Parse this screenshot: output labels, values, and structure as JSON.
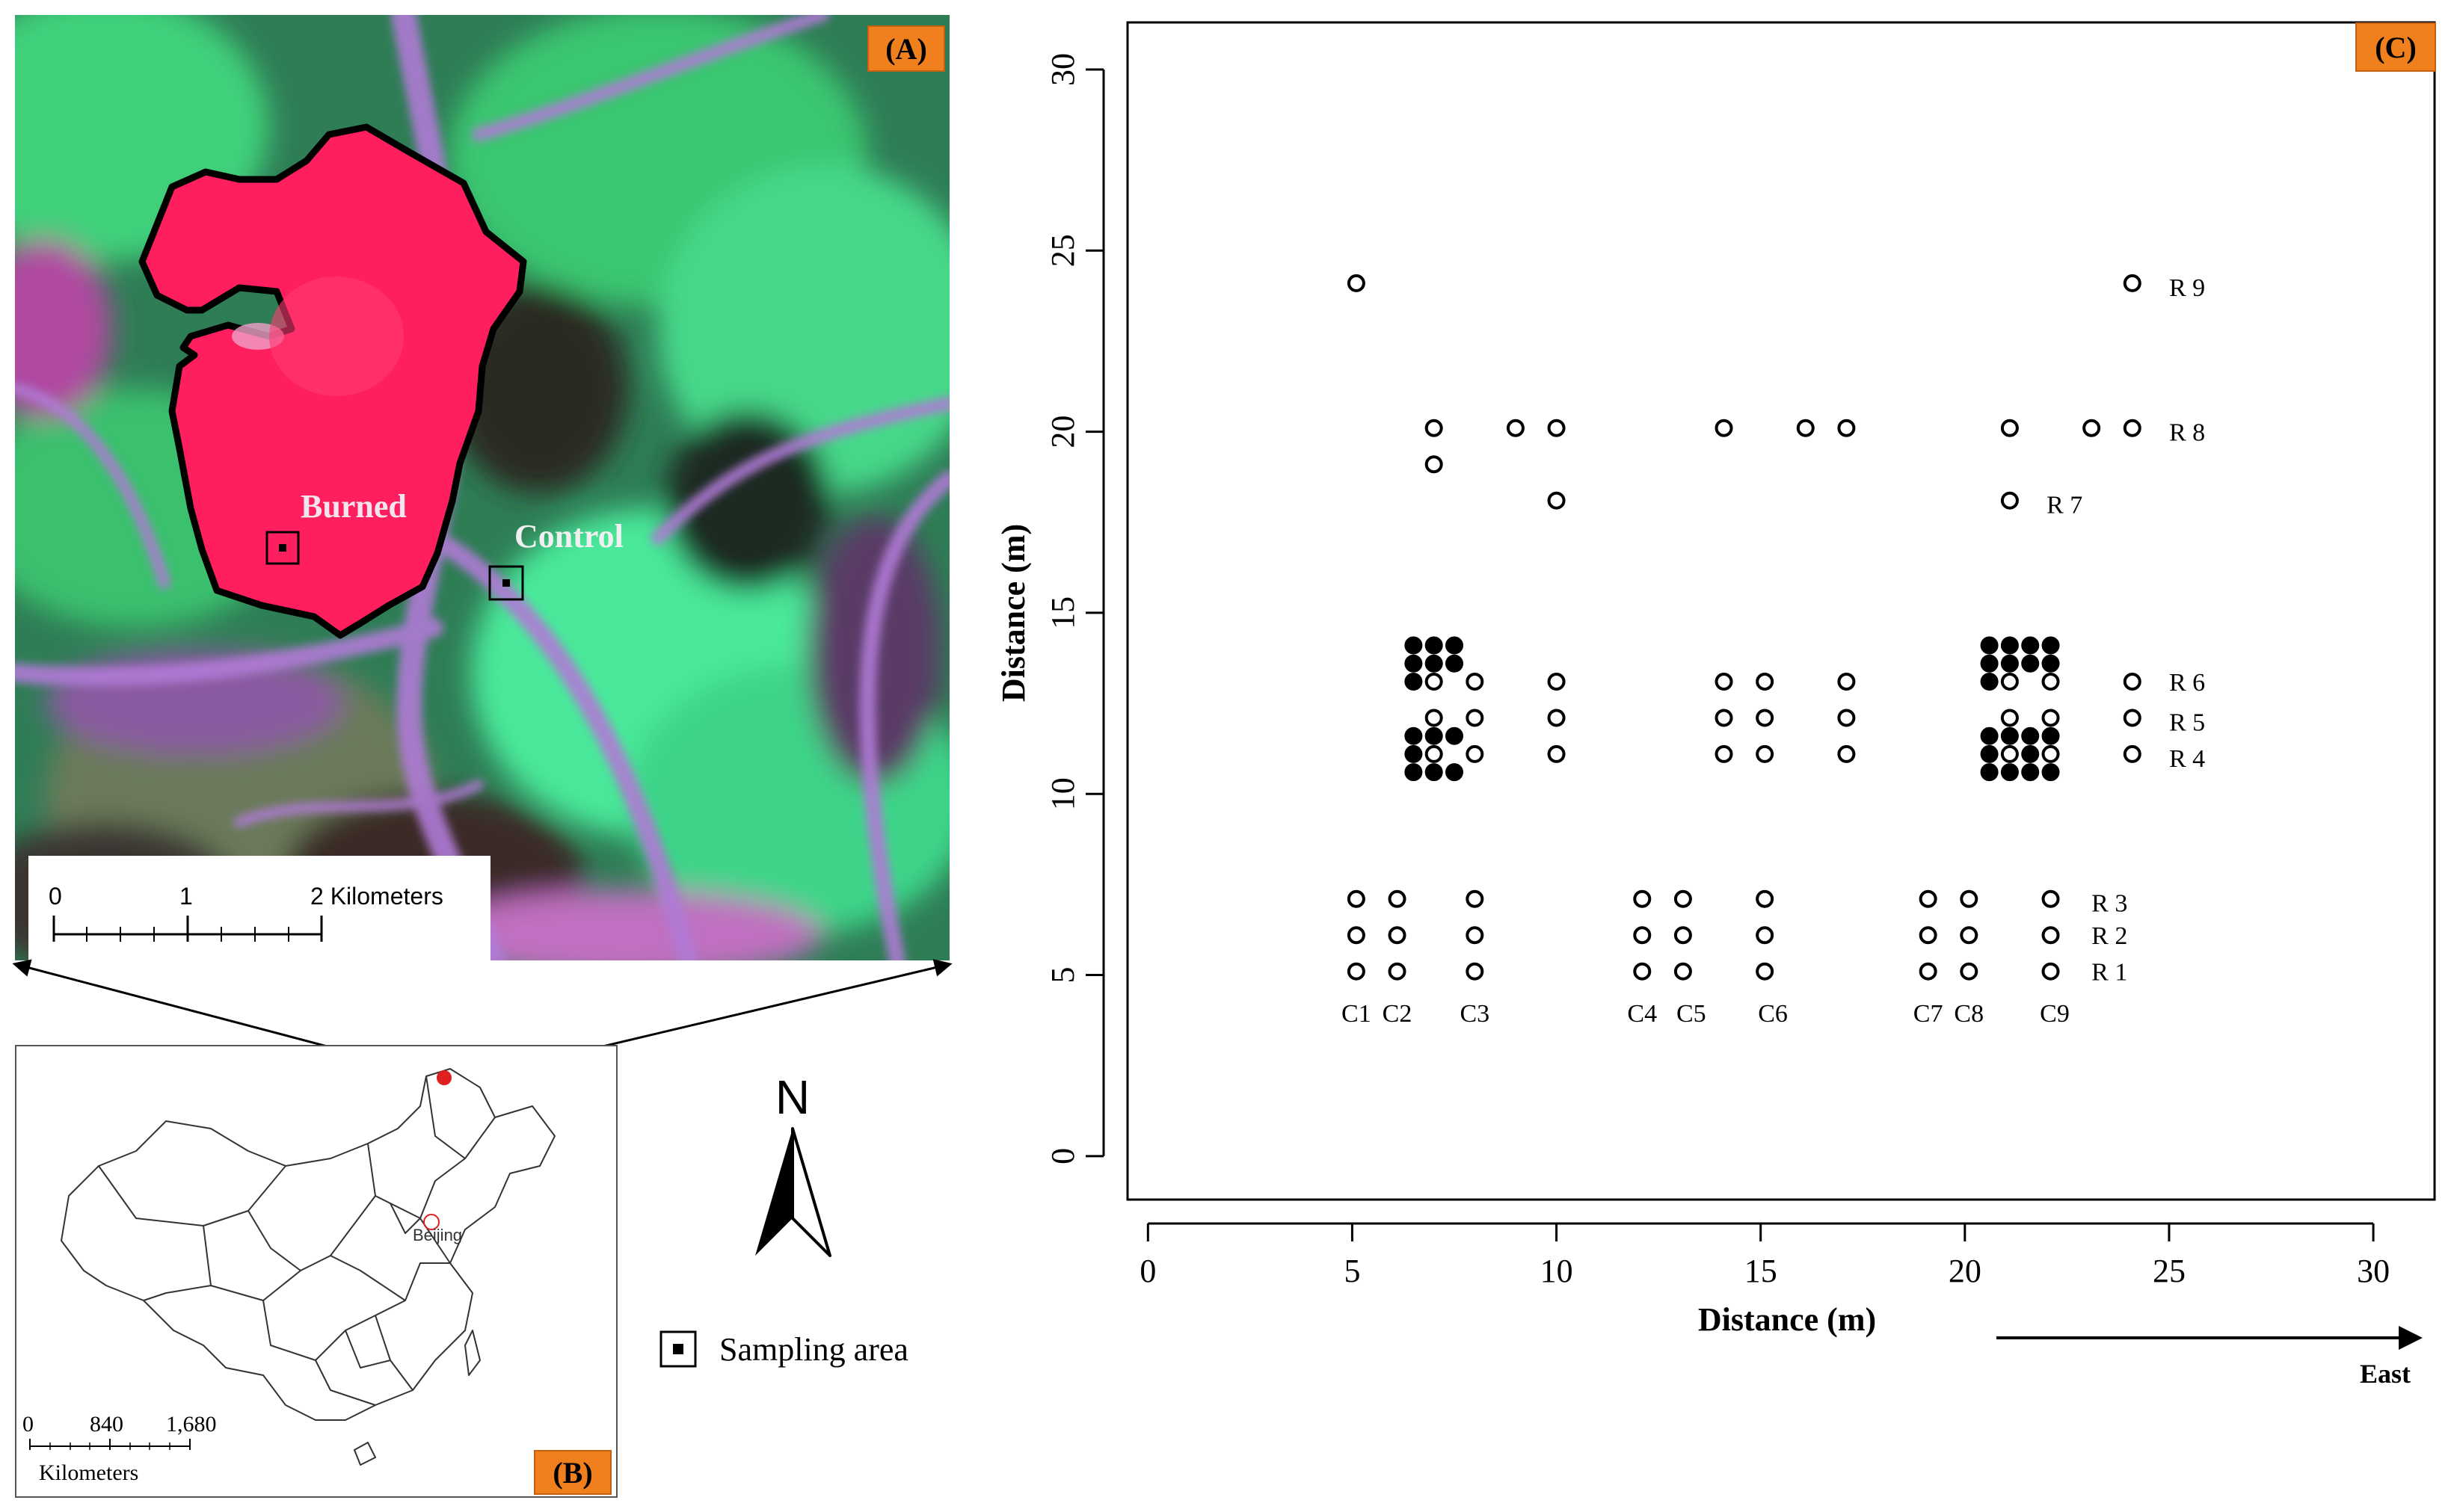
{
  "panel_a": {
    "badge": "(A)",
    "labels": {
      "burned": "Burned",
      "control": "Control"
    },
    "scalebar": {
      "ticks": [
        "0",
        "1",
        "2 Kilometers"
      ]
    },
    "colors": {
      "burned_fill": "#ff1f5e",
      "vegetation": "#3fd07a",
      "ridge": "#a66ad0",
      "outline": "#000000"
    }
  },
  "panel_b": {
    "badge": "(B)",
    "city_label": "Beijing",
    "scalebar": {
      "ticks": [
        "0",
        "840",
        "1,680"
      ],
      "unit": "Kilometers"
    },
    "site_color": "#e02020"
  },
  "north_arrow": {
    "label": "N"
  },
  "legend": {
    "symbol": "square-with-dot-icon",
    "label": "Sampling area"
  },
  "chart_data": {
    "type": "scatter",
    "badge": "(C)",
    "xlabel": "Distance (m)",
    "ylabel": "Distance (m)",
    "xlim": [
      -0.5,
      31.5
    ],
    "ylim": [
      -1.2,
      31.3
    ],
    "x_ticks": [
      0,
      5,
      10,
      15,
      20,
      25,
      30
    ],
    "y_ticks": [
      0,
      5,
      10,
      15,
      20,
      25,
      30
    ],
    "direction_label": "East",
    "column_labels": [
      {
        "label": "C1",
        "x": 5.1
      },
      {
        "label": "C2",
        "x": 6.1
      },
      {
        "label": "C3",
        "x": 8.0
      },
      {
        "label": "C4",
        "x": 12.1
      },
      {
        "label": "C5",
        "x": 13.3
      },
      {
        "label": "C6",
        "x": 15.3
      },
      {
        "label": "C7",
        "x": 19.1
      },
      {
        "label": "C8",
        "x": 20.1
      },
      {
        "label": "C9",
        "x": 22.2
      }
    ],
    "column_label_y": 4.0,
    "row_labels": [
      {
        "label": "R 1",
        "x": 23.1,
        "y": 5.1
      },
      {
        "label": "R 2",
        "x": 23.1,
        "y": 6.1
      },
      {
        "label": "R 3",
        "x": 23.1,
        "y": 7.0
      },
      {
        "label": "R 4",
        "x": 25.0,
        "y": 11.0
      },
      {
        "label": "R 5",
        "x": 25.0,
        "y": 12.0
      },
      {
        "label": "R 6",
        "x": 25.0,
        "y": 13.1
      },
      {
        "label": "R 7",
        "x": 22.0,
        "y": 18.0
      },
      {
        "label": "R 8",
        "x": 25.0,
        "y": 20.0
      },
      {
        "label": "R 9",
        "x": 25.0,
        "y": 24.0
      }
    ],
    "series": [
      {
        "marker": "open",
        "points": [
          [
            5.1,
            24.1
          ],
          [
            24.1,
            24.1
          ],
          [
            7.0,
            20.1
          ],
          [
            9.0,
            20.1
          ],
          [
            10.0,
            20.1
          ],
          [
            14.1,
            20.1
          ],
          [
            16.1,
            20.1
          ],
          [
            17.1,
            20.1
          ],
          [
            21.1,
            20.1
          ],
          [
            23.1,
            20.1
          ],
          [
            24.1,
            20.1
          ],
          [
            7.0,
            19.1
          ],
          [
            10.0,
            18.1
          ],
          [
            21.1,
            18.1
          ],
          [
            7.0,
            13.1
          ],
          [
            8.0,
            13.1
          ],
          [
            10.0,
            13.1
          ],
          [
            14.1,
            13.1
          ],
          [
            15.1,
            13.1
          ],
          [
            17.1,
            13.1
          ],
          [
            21.1,
            13.1
          ],
          [
            22.1,
            13.1
          ],
          [
            24.1,
            13.1
          ],
          [
            7.0,
            12.1
          ],
          [
            8.0,
            12.1
          ],
          [
            10.0,
            12.1
          ],
          [
            14.1,
            12.1
          ],
          [
            15.1,
            12.1
          ],
          [
            17.1,
            12.1
          ],
          [
            21.1,
            12.1
          ],
          [
            22.1,
            12.1
          ],
          [
            24.1,
            12.1
          ],
          [
            7.0,
            11.1
          ],
          [
            8.0,
            11.1
          ],
          [
            10.0,
            11.1
          ],
          [
            14.1,
            11.1
          ],
          [
            15.1,
            11.1
          ],
          [
            17.1,
            11.1
          ],
          [
            21.1,
            11.1
          ],
          [
            22.1,
            11.1
          ],
          [
            24.1,
            11.1
          ],
          [
            5.1,
            7.1
          ],
          [
            6.1,
            7.1
          ],
          [
            8.0,
            7.1
          ],
          [
            12.1,
            7.1
          ],
          [
            13.1,
            7.1
          ],
          [
            15.1,
            7.1
          ],
          [
            19.1,
            7.1
          ],
          [
            20.1,
            7.1
          ],
          [
            22.1,
            7.1
          ],
          [
            5.1,
            6.1
          ],
          [
            6.1,
            6.1
          ],
          [
            8.0,
            6.1
          ],
          [
            12.1,
            6.1
          ],
          [
            13.1,
            6.1
          ],
          [
            15.1,
            6.1
          ],
          [
            19.1,
            6.1
          ],
          [
            20.1,
            6.1
          ],
          [
            22.1,
            6.1
          ],
          [
            5.1,
            5.1
          ],
          [
            6.1,
            5.1
          ],
          [
            8.0,
            5.1
          ],
          [
            12.1,
            5.1
          ],
          [
            13.1,
            5.1
          ],
          [
            15.1,
            5.1
          ],
          [
            19.1,
            5.1
          ],
          [
            20.1,
            5.1
          ],
          [
            22.1,
            5.1
          ]
        ]
      },
      {
        "marker": "filled",
        "points": [
          [
            6.5,
            14.1
          ],
          [
            7.0,
            14.1
          ],
          [
            7.5,
            14.1
          ],
          [
            6.5,
            13.6
          ],
          [
            7.0,
            13.6
          ],
          [
            7.5,
            13.6
          ],
          [
            6.5,
            13.1
          ],
          [
            6.5,
            11.6
          ],
          [
            7.0,
            11.6
          ],
          [
            7.5,
            11.6
          ],
          [
            6.5,
            11.1
          ],
          [
            6.5,
            10.6
          ],
          [
            7.0,
            10.6
          ],
          [
            7.5,
            10.6
          ],
          [
            20.6,
            14.1
          ],
          [
            21.1,
            14.1
          ],
          [
            21.6,
            14.1
          ],
          [
            22.1,
            14.1
          ],
          [
            20.6,
            13.6
          ],
          [
            21.1,
            13.6
          ],
          [
            21.6,
            13.6
          ],
          [
            22.1,
            13.6
          ],
          [
            20.6,
            13.1
          ],
          [
            20.6,
            11.6
          ],
          [
            21.1,
            11.6
          ],
          [
            21.6,
            11.6
          ],
          [
            22.1,
            11.6
          ],
          [
            20.6,
            11.1
          ],
          [
            21.6,
            11.1
          ],
          [
            20.6,
            10.6
          ],
          [
            21.1,
            10.6
          ],
          [
            21.6,
            10.6
          ],
          [
            22.1,
            10.6
          ]
        ]
      }
    ]
  }
}
